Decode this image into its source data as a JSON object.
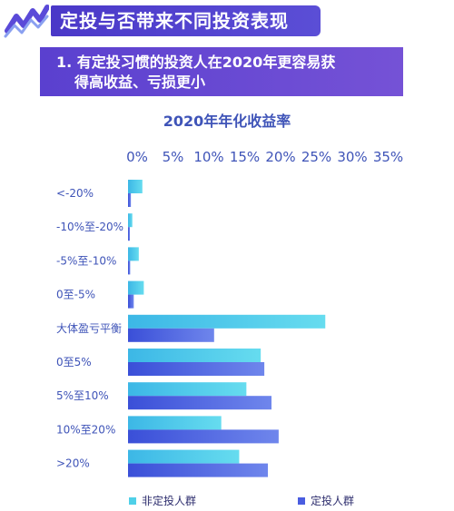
{
  "header": {
    "title": "定投与否带来不同投资表现",
    "subtitle_line1": "1. 有定投习惯的投资人在2020年更容易获",
    "subtitle_line2": "得高收益、亏损更小"
  },
  "colors": {
    "brand_purple": "#4a38c8",
    "series_non_sip": "#4fd0e8",
    "series_sip": "#4a5de0",
    "axis_text": "#3f54b8"
  },
  "chart_data": {
    "type": "bar",
    "orientation": "horizontal",
    "title": "2020年年化收益率",
    "x_axis_ticks": [
      "0%",
      "5%",
      "10%",
      "15%",
      "20%",
      "25%",
      "30%",
      "35%"
    ],
    "xlim": [
      0,
      35
    ],
    "grid": false,
    "legend_position": "bottom",
    "categories": [
      "<-20%",
      "-10%至-20%",
      "-5%至-10%",
      "0至-5%",
      "大体盈亏平衡",
      "0至5%",
      "5%至10%",
      "10%至20%",
      ">20%"
    ],
    "series": [
      {
        "name": "非定投人群",
        "values": [
          2.0,
          0.6,
          1.5,
          2.2,
          27.5,
          18.5,
          16.5,
          13.0,
          15.5
        ]
      },
      {
        "name": "定投人群",
        "values": [
          0.4,
          0.2,
          0.3,
          0.8,
          12.0,
          19.0,
          20.0,
          21.0,
          19.5
        ]
      }
    ]
  }
}
